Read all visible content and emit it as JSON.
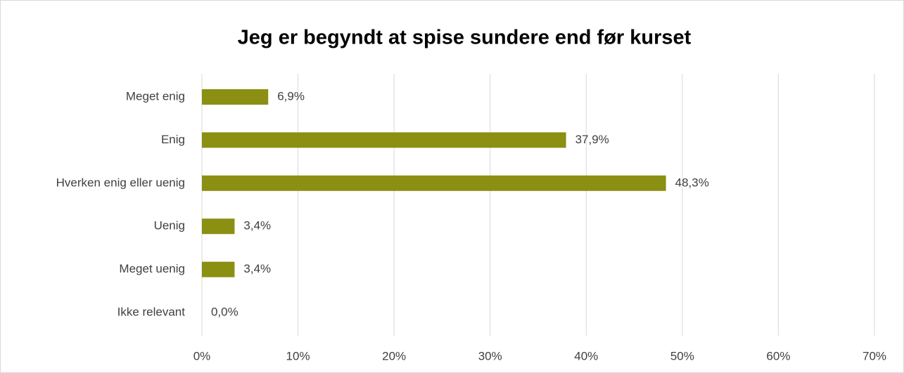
{
  "chart_data": {
    "type": "bar",
    "orientation": "horizontal",
    "title": "Jeg er begyndt at spise sundere end før kurset",
    "categories": [
      "Meget enig",
      "Enig",
      "Hverken enig eller uenig",
      "Uenig",
      "Meget uenig",
      "Ikke relevant"
    ],
    "values": [
      6.9,
      37.9,
      48.3,
      3.4,
      3.4,
      0.0
    ],
    "value_labels": [
      "6,9%",
      "37,9%",
      "48,3%",
      "3,4%",
      "3,4%",
      "0,0%"
    ],
    "color": "#8b8f12",
    "xlim": [
      0,
      70
    ],
    "xticks": [
      {
        "value": 0,
        "label": "0%"
      },
      {
        "value": 10,
        "label": "10%"
      },
      {
        "value": 20,
        "label": "20%"
      },
      {
        "value": 30,
        "label": "30%"
      },
      {
        "value": 40,
        "label": "40%"
      },
      {
        "value": 50,
        "label": "50%"
      },
      {
        "value": 60,
        "label": "60%"
      },
      {
        "value": 70,
        "label": "70%"
      }
    ],
    "grid": true
  }
}
